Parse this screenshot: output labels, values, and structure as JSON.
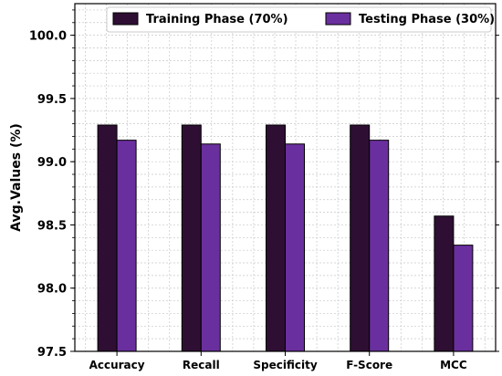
{
  "chart_data": {
    "type": "bar",
    "title": "",
    "xlabel": "",
    "ylabel": "Avg.Values (%)",
    "categories": [
      "Accuracy",
      "Recall",
      "Specificity",
      "F-Score",
      "MCC"
    ],
    "series": [
      {
        "name": "Training Phase (70%)",
        "color": "#2e0f33",
        "values": [
          99.29,
          99.29,
          99.29,
          99.29,
          98.57
        ]
      },
      {
        "name": "Testing Phase (30%)",
        "color": "#6a2f9e",
        "values": [
          99.17,
          99.14,
          99.14,
          99.17,
          98.34
        ]
      }
    ],
    "ylim": [
      97.5,
      100.25
    ],
    "yticks": [
      "97.5",
      "98.0",
      "98.5",
      "99.0",
      "99.5",
      "100.0"
    ],
    "grid": true,
    "legend_position": "top"
  }
}
